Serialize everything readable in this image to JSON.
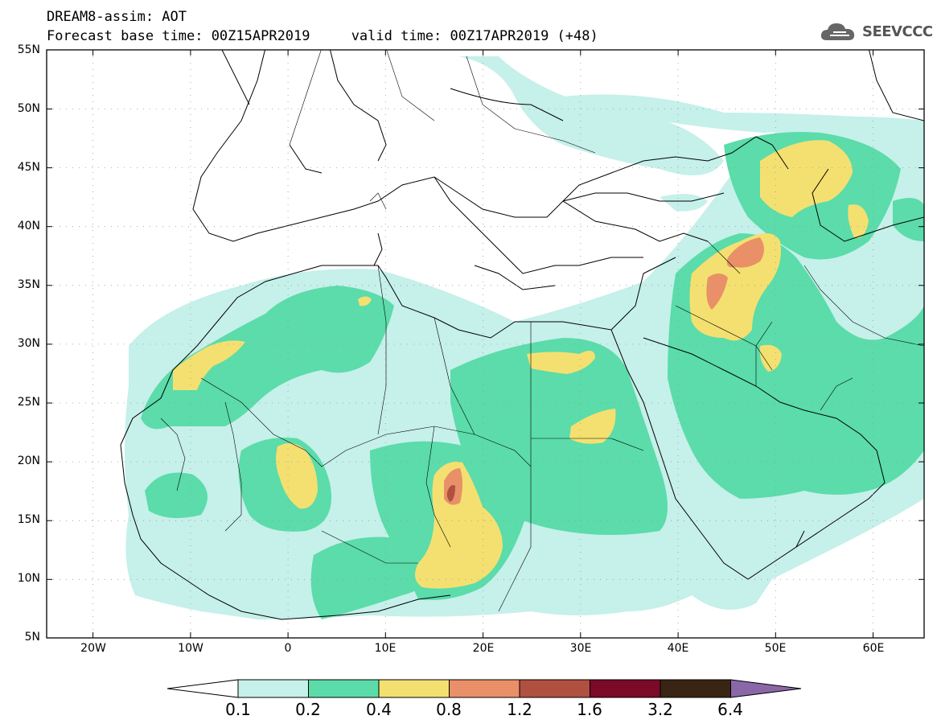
{
  "header": {
    "title_line1": "DREAM8-assim: AOT",
    "title_line2": "Forecast base time: 00Z15APR2019     valid time: 00Z17APR2019 (+48)"
  },
  "logo": {
    "text": "SEEVCCC",
    "icon": "cloud-icon"
  },
  "map": {
    "lat_labels": [
      "55N",
      "50N",
      "45N",
      "40N",
      "35N",
      "30N",
      "25N",
      "20N",
      "15N",
      "10N",
      "5N"
    ],
    "lon_labels": [
      "20W",
      "10W",
      "0",
      "10E",
      "20E",
      "30E",
      "40E",
      "50E",
      "60E"
    ],
    "extent": {
      "lon_min": -25,
      "lon_max": 65,
      "lat_min": 5,
      "lat_max": 55
    },
    "field": "Aerosol Optical Thickness"
  },
  "colorbar": {
    "labels": [
      "0.1",
      "0.2",
      "0.4",
      "0.8",
      "1.2",
      "1.6",
      "3.2",
      "6.4"
    ],
    "colors": {
      "under": "#ffffff",
      "c1": "#c6f0ea",
      "c2": "#5bdcaa",
      "c3": "#f4e070",
      "c4": "#e99068",
      "c5": "#b05040",
      "c6": "#7a0a28",
      "c7": "#3a2414",
      "over": "#8a68a8"
    }
  }
}
